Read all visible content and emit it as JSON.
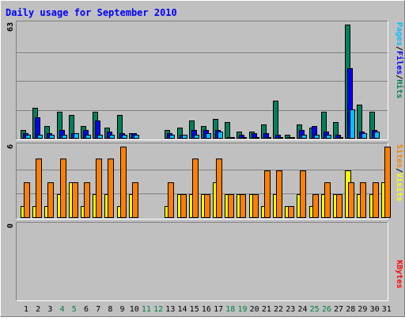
{
  "chart_data": {
    "title": "Daily usage for September 2010",
    "type": "bar",
    "colors": {
      "background": "#c0c0c0",
      "hits": "#00805c",
      "files": "#0000ff",
      "pages": "#00c0ff",
      "visits": "#ffff00",
      "sites": "#ff8000",
      "kbytes": "#ff0000",
      "title": "#0000ff",
      "weekend_label": "#008040",
      "weekday_label": "#000000"
    },
    "categories": [
      "1",
      "2",
      "3",
      "4",
      "5",
      "6",
      "7",
      "8",
      "9",
      "10",
      "11",
      "12",
      "13",
      "14",
      "15",
      "16",
      "17",
      "18",
      "19",
      "20",
      "21",
      "22",
      "23",
      "24",
      "25",
      "26",
      "27",
      "28",
      "29",
      "30",
      "31"
    ],
    "weekend_days": [
      "4",
      "5",
      "11",
      "12",
      "18",
      "19",
      "25",
      "26"
    ],
    "panels": [
      {
        "id": "hits",
        "ymax_label": "63",
        "ylim": [
          0,
          63
        ],
        "legend": [
          {
            "label": "Pages",
            "color": "#00c0ff"
          },
          {
            "label": "/",
            "color": "#000000"
          },
          {
            "label": "Files",
            "color": "#0000ff"
          },
          {
            "label": "/",
            "color": "#000000"
          },
          {
            "label": "Hits",
            "color": "#00805c"
          }
        ],
        "series": [
          {
            "name": "Hits",
            "color": "#00805c",
            "values": [
              5,
              17,
              7,
              15,
              13,
              7,
              15,
              6,
              13,
              3,
              0,
              0,
              5,
              6,
              10,
              7,
              11,
              9,
              4,
              4,
              8,
              21,
              2,
              8,
              6,
              15,
              9,
              63,
              19,
              15,
              0
            ]
          },
          {
            "name": "Files",
            "color": "#0000ff",
            "values": [
              3,
              12,
              3,
              5,
              3,
              5,
              10,
              4,
              3,
              3,
              0,
              0,
              3,
              2,
              5,
              5,
              5,
              1,
              2,
              3,
              3,
              2,
              1,
              5,
              7,
              4,
              2,
              39,
              4,
              5,
              0
            ]
          },
          {
            "name": "Pages",
            "color": "#00c0ff",
            "values": [
              2,
              2,
              2,
              2,
              3,
              2,
              2,
              2,
              2,
              2,
              0,
              0,
              2,
              2,
              2,
              3,
              4,
              1,
              1,
              1,
              1,
              1,
              1,
              2,
              2,
              2,
              1,
              16,
              3,
              4,
              0
            ]
          }
        ]
      },
      {
        "id": "visits",
        "ymax_label": "6",
        "ylim": [
          0,
          6
        ],
        "legend": [
          {
            "label": "Sites",
            "color": "#ff8000"
          },
          {
            "label": "/",
            "color": "#000000"
          },
          {
            "label": "Visits",
            "color": "#ffff00"
          }
        ],
        "series": [
          {
            "name": "Visits",
            "color": "#ffff00",
            "values": [
              1,
              1,
              1,
              2,
              3,
              1,
              2,
              2,
              1,
              2,
              0,
              0,
              1,
              2,
              2,
              2,
              3,
              2,
              2,
              2,
              1,
              2,
              1,
              2,
              1,
              2,
              2,
              4,
              2,
              2,
              3
            ]
          },
          {
            "name": "Sites",
            "color": "#ff8000",
            "values": [
              3,
              5,
              3,
              5,
              3,
              3,
              5,
              5,
              6,
              3,
              0,
              0,
              3,
              2,
              5,
              2,
              5,
              2,
              2,
              2,
              4,
              4,
              1,
              4,
              2,
              3,
              2,
              3,
              3,
              3,
              6
            ]
          }
        ]
      },
      {
        "id": "kbytes",
        "ymax_label": "0",
        "ylim": [
          0,
          1
        ],
        "legend": [
          {
            "label": "KBytes",
            "color": "#ff0000"
          }
        ],
        "series": [
          {
            "name": "KBytes",
            "color": "#ff0000",
            "values": [
              0,
              0,
              0,
              0,
              0,
              0,
              0,
              0,
              0,
              0,
              0,
              0,
              0,
              0,
              0,
              0,
              0,
              0,
              0,
              0,
              0,
              0,
              0,
              0,
              0,
              0,
              0,
              0,
              0,
              0,
              0
            ]
          }
        ]
      }
    ]
  }
}
